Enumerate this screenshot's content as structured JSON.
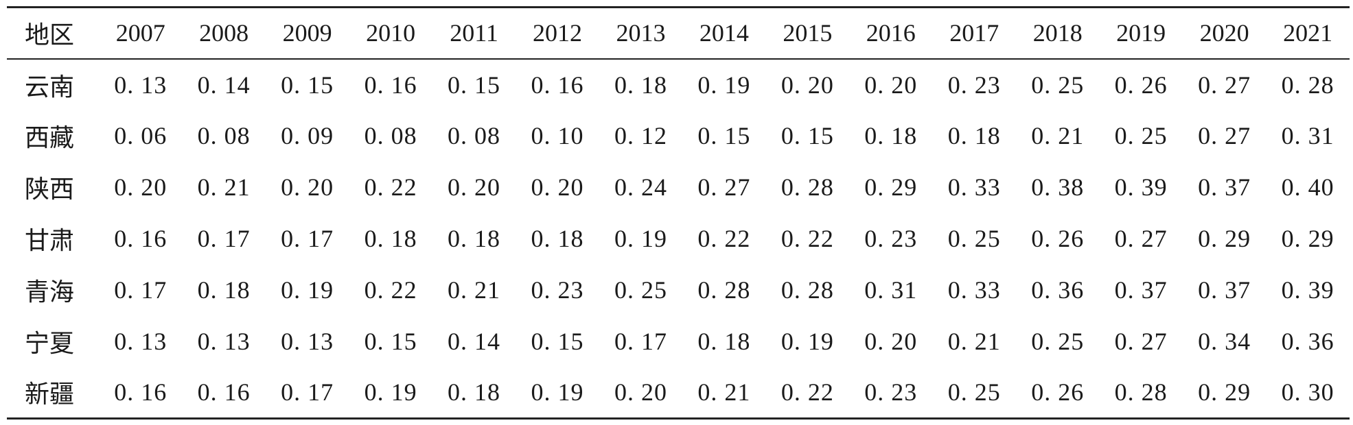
{
  "table": {
    "header": [
      "地区",
      "2007",
      "2008",
      "2009",
      "2010",
      "2011",
      "2012",
      "2013",
      "2014",
      "2015",
      "2016",
      "2017",
      "2018",
      "2019",
      "2020",
      "2021"
    ],
    "rows": [
      {
        "region": "云南",
        "values": [
          "0. 13",
          "0. 14",
          "0. 15",
          "0. 16",
          "0. 15",
          "0. 16",
          "0. 18",
          "0. 19",
          "0. 20",
          "0. 20",
          "0. 23",
          "0. 25",
          "0. 26",
          "0. 27",
          "0. 28"
        ]
      },
      {
        "region": "西藏",
        "values": [
          "0. 06",
          "0. 08",
          "0. 09",
          "0. 08",
          "0. 08",
          "0. 10",
          "0. 12",
          "0. 15",
          "0. 15",
          "0. 18",
          "0. 18",
          "0. 21",
          "0. 25",
          "0. 27",
          "0. 31"
        ]
      },
      {
        "region": "陕西",
        "values": [
          "0. 20",
          "0. 21",
          "0. 20",
          "0. 22",
          "0. 20",
          "0. 20",
          "0. 24",
          "0. 27",
          "0. 28",
          "0. 29",
          "0. 33",
          "0. 38",
          "0. 39",
          "0. 37",
          "0. 40"
        ]
      },
      {
        "region": "甘肃",
        "values": [
          "0. 16",
          "0. 17",
          "0. 17",
          "0. 18",
          "0. 18",
          "0. 18",
          "0. 19",
          "0. 22",
          "0. 22",
          "0. 23",
          "0. 25",
          "0. 26",
          "0. 27",
          "0. 29",
          "0. 29"
        ]
      },
      {
        "region": "青海",
        "values": [
          "0. 17",
          "0. 18",
          "0. 19",
          "0. 22",
          "0. 21",
          "0. 23",
          "0. 25",
          "0. 28",
          "0. 28",
          "0. 31",
          "0. 33",
          "0. 36",
          "0. 37",
          "0. 37",
          "0. 39"
        ]
      },
      {
        "region": "宁夏",
        "values": [
          "0. 13",
          "0. 13",
          "0. 13",
          "0. 15",
          "0. 14",
          "0. 15",
          "0. 17",
          "0. 18",
          "0. 19",
          "0. 20",
          "0. 21",
          "0. 25",
          "0. 27",
          "0. 34",
          "0. 36"
        ]
      },
      {
        "region": "新疆",
        "values": [
          "0. 16",
          "0. 16",
          "0. 17",
          "0. 19",
          "0. 18",
          "0. 19",
          "0. 20",
          "0. 21",
          "0. 22",
          "0. 23",
          "0. 25",
          "0. 26",
          "0. 28",
          "0. 29",
          "0. 30"
        ]
      }
    ]
  }
}
